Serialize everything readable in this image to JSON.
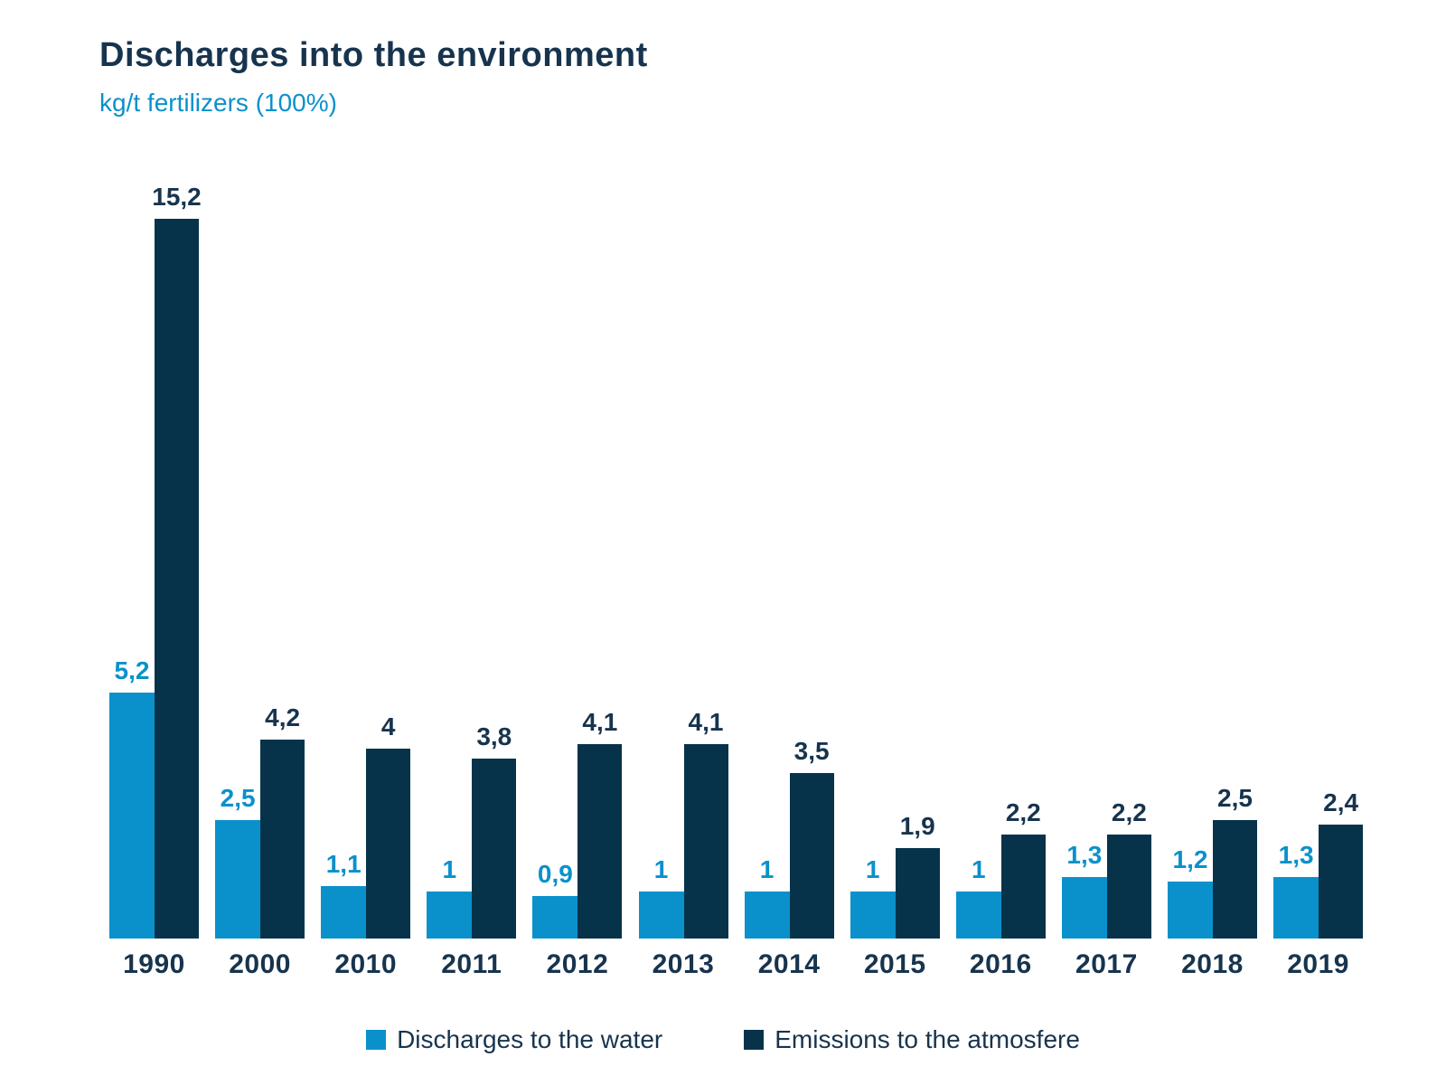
{
  "header": {
    "title": "Discharges into the environment",
    "subtitle": "kg/t fertilizers (100%)"
  },
  "colors": {
    "water": "#0a91cb",
    "atmosphere": "#06334a",
    "text_navy": "#17344e",
    "background": "#ffffff"
  },
  "chart_data": {
    "type": "bar",
    "title": "Discharges into the environment",
    "subtitle": "kg/t fertilizers (100%)",
    "categories": [
      "1990",
      "2000",
      "2010",
      "2011",
      "2012",
      "2013",
      "2014",
      "2015",
      "2016",
      "2017",
      "2018",
      "2019"
    ],
    "series": [
      {
        "name": "Discharges to the water",
        "color": "#0a91cb",
        "values": [
          5.2,
          2.5,
          1.1,
          1,
          0.9,
          1,
          1,
          1,
          1,
          1.3,
          1.2,
          1.3
        ],
        "labels": [
          "5,2",
          "2,5",
          "1,1",
          "1",
          "0,9",
          "1",
          "1",
          "1",
          "1",
          "1,3",
          "1,2",
          "1,3"
        ]
      },
      {
        "name": "Emissions to the atmosfere",
        "color": "#06334a",
        "values": [
          15.2,
          4.2,
          4,
          3.8,
          4.1,
          4.1,
          3.5,
          1.9,
          2.2,
          2.2,
          2.5,
          2.4
        ],
        "labels": [
          "15,2",
          "4,2",
          "4",
          "3,8",
          "4,1",
          "4,1",
          "3,5",
          "1,9",
          "2,2",
          "2,2",
          "2,5",
          "2,4"
        ]
      }
    ],
    "ylim": [
      0,
      15.2
    ],
    "grid": "off",
    "y_axis": "hidden",
    "legend_position": "bottom",
    "decimal_separator": ","
  }
}
